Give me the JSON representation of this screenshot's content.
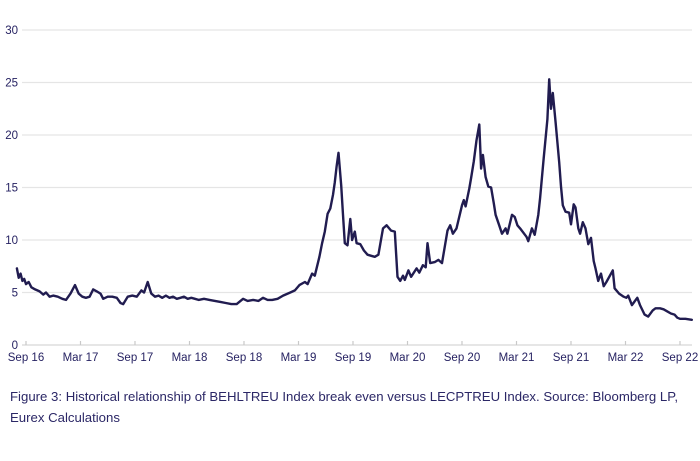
{
  "figure": {
    "caption": "Figure 3: Historical relationship of BEHLTREU Index break even versus LECPTREU Index. Source: Bloomberg LP, Eurex Calculations"
  },
  "style": {
    "line_color": "#211c50",
    "grid_color": "#e5e5e5",
    "axis_baseline_color": "#d8d8d8",
    "tick_color": "#c9c9c9",
    "label_color": "#262262",
    "background": "#ffffff"
  },
  "chart_data": {
    "type": "line",
    "title": "",
    "xlabel": "",
    "ylabel": "",
    "legend_position": "none",
    "grid": "horizontal",
    "ylim": [
      0,
      30
    ],
    "y_ticks": [
      0,
      5,
      10,
      15,
      20,
      25,
      30
    ],
    "x_unit": "months since Sep 2016",
    "x_tick_positions": [
      0,
      6,
      12,
      18,
      24,
      30,
      36,
      42,
      48,
      54,
      60,
      66,
      72
    ],
    "x_tick_labels": [
      "Sep 16",
      "Mar 17",
      "Sep 17",
      "Mar 18",
      "Sep 18",
      "Mar 19",
      "Sep 19",
      "Mar 20",
      "Sep 20",
      "Mar 21",
      "Sep 21",
      "Mar 22",
      "Sep 22"
    ],
    "series": [
      {
        "name": "BEHLTREU Index break even versus LECPTREU Index",
        "color": "#211c50",
        "points": [
          [
            -1.0,
            7.3
          ],
          [
            -0.8,
            6.4
          ],
          [
            -0.6,
            6.8
          ],
          [
            -0.4,
            6.1
          ],
          [
            -0.2,
            6.3
          ],
          [
            0,
            5.8
          ],
          [
            0.3,
            6.0
          ],
          [
            0.6,
            5.5
          ],
          [
            1.0,
            5.3
          ],
          [
            1.5,
            5.1
          ],
          [
            1.9,
            4.8
          ],
          [
            2.2,
            5.0
          ],
          [
            2.6,
            4.6
          ],
          [
            3.0,
            4.7
          ],
          [
            3.5,
            4.6
          ],
          [
            4.0,
            4.4
          ],
          [
            4.4,
            4.3
          ],
          [
            4.9,
            4.9
          ],
          [
            5.4,
            5.7
          ],
          [
            5.8,
            4.9
          ],
          [
            6.2,
            4.6
          ],
          [
            6.6,
            4.5
          ],
          [
            7.0,
            4.6
          ],
          [
            7.4,
            5.3
          ],
          [
            7.8,
            5.1
          ],
          [
            8.2,
            4.9
          ],
          [
            8.5,
            4.4
          ],
          [
            9.0,
            4.6
          ],
          [
            9.5,
            4.6
          ],
          [
            10.0,
            4.5
          ],
          [
            10.4,
            4.0
          ],
          [
            10.7,
            3.9
          ],
          [
            11.2,
            4.6
          ],
          [
            11.7,
            4.7
          ],
          [
            12.2,
            4.6
          ],
          [
            12.7,
            5.2
          ],
          [
            13.0,
            5.0
          ],
          [
            13.4,
            6.0
          ],
          [
            13.8,
            4.9
          ],
          [
            14.2,
            4.6
          ],
          [
            14.6,
            4.7
          ],
          [
            15.0,
            4.5
          ],
          [
            15.4,
            4.7
          ],
          [
            15.8,
            4.5
          ],
          [
            16.2,
            4.6
          ],
          [
            16.6,
            4.4
          ],
          [
            17.0,
            4.5
          ],
          [
            17.4,
            4.6
          ],
          [
            17.8,
            4.4
          ],
          [
            18.2,
            4.5
          ],
          [
            18.6,
            4.4
          ],
          [
            19.0,
            4.3
          ],
          [
            19.6,
            4.4
          ],
          [
            20.2,
            4.3
          ],
          [
            20.8,
            4.2
          ],
          [
            21.4,
            4.1
          ],
          [
            22.0,
            4.0
          ],
          [
            22.6,
            3.9
          ],
          [
            23.2,
            3.9
          ],
          [
            23.9,
            4.4
          ],
          [
            24.4,
            4.2
          ],
          [
            25.0,
            4.3
          ],
          [
            25.6,
            4.2
          ],
          [
            26.1,
            4.5
          ],
          [
            26.6,
            4.3
          ],
          [
            27.1,
            4.3
          ],
          [
            27.7,
            4.4
          ],
          [
            28.3,
            4.7
          ],
          [
            29.1,
            5.0
          ],
          [
            29.6,
            5.2
          ],
          [
            30.1,
            5.7
          ],
          [
            30.7,
            6.0
          ],
          [
            31.0,
            5.8
          ],
          [
            31.5,
            6.8
          ],
          [
            31.8,
            6.6
          ],
          [
            32.3,
            8.4
          ],
          [
            32.6,
            9.7
          ],
          [
            32.9,
            10.8
          ],
          [
            33.2,
            12.5
          ],
          [
            33.5,
            13.0
          ],
          [
            33.8,
            14.3
          ],
          [
            34.0,
            15.5
          ],
          [
            34.2,
            17.0
          ],
          [
            34.4,
            18.3
          ],
          [
            34.7,
            15.2
          ],
          [
            34.9,
            12.4
          ],
          [
            35.1,
            9.7
          ],
          [
            35.4,
            9.5
          ],
          [
            35.7,
            12.0
          ],
          [
            35.9,
            10.0
          ],
          [
            36.2,
            10.8
          ],
          [
            36.4,
            9.7
          ],
          [
            36.8,
            9.6
          ],
          [
            37.2,
            9.0
          ],
          [
            37.6,
            8.6
          ],
          [
            38.0,
            8.5
          ],
          [
            38.4,
            8.4
          ],
          [
            38.8,
            8.6
          ],
          [
            39.3,
            11.1
          ],
          [
            39.7,
            11.4
          ],
          [
            40.2,
            10.9
          ],
          [
            40.6,
            10.8
          ],
          [
            40.9,
            6.5
          ],
          [
            41.2,
            6.1
          ],
          [
            41.5,
            6.6
          ],
          [
            41.7,
            6.2
          ],
          [
            42.1,
            7.1
          ],
          [
            42.4,
            6.5
          ],
          [
            43.0,
            7.3
          ],
          [
            43.3,
            6.9
          ],
          [
            43.7,
            7.6
          ],
          [
            44.0,
            7.4
          ],
          [
            44.2,
            9.7
          ],
          [
            44.5,
            7.8
          ],
          [
            45.0,
            7.9
          ],
          [
            45.4,
            8.1
          ],
          [
            45.8,
            7.8
          ],
          [
            46.4,
            10.9
          ],
          [
            46.7,
            11.4
          ],
          [
            47.0,
            10.6
          ],
          [
            47.4,
            11.1
          ],
          [
            48.0,
            13.3
          ],
          [
            48.2,
            13.8
          ],
          [
            48.4,
            13.2
          ],
          [
            48.8,
            14.9
          ],
          [
            49.0,
            15.9
          ],
          [
            49.3,
            17.5
          ],
          [
            49.6,
            19.5
          ],
          [
            49.9,
            21.0
          ],
          [
            50.1,
            16.8
          ],
          [
            50.3,
            18.1
          ],
          [
            50.6,
            16.0
          ],
          [
            50.9,
            15.1
          ],
          [
            51.2,
            15.0
          ],
          [
            51.5,
            13.5
          ],
          [
            51.7,
            12.4
          ],
          [
            52.1,
            11.4
          ],
          [
            52.4,
            10.6
          ],
          [
            52.8,
            11.1
          ],
          [
            53.0,
            10.6
          ],
          [
            53.5,
            12.4
          ],
          [
            53.8,
            12.2
          ],
          [
            54.1,
            11.4
          ],
          [
            54.4,
            11.1
          ],
          [
            55.1,
            10.3
          ],
          [
            55.3,
            9.9
          ],
          [
            55.7,
            11.1
          ],
          [
            56.0,
            10.5
          ],
          [
            56.4,
            12.4
          ],
          [
            56.6,
            14.0
          ],
          [
            56.8,
            15.9
          ],
          [
            57.0,
            17.8
          ],
          [
            57.2,
            19.7
          ],
          [
            57.4,
            21.5
          ],
          [
            57.6,
            25.3
          ],
          [
            57.8,
            22.5
          ],
          [
            58.0,
            24.0
          ],
          [
            58.3,
            21.2
          ],
          [
            58.5,
            19.3
          ],
          [
            58.7,
            17.4
          ],
          [
            58.9,
            15.1
          ],
          [
            59.1,
            13.3
          ],
          [
            59.4,
            12.7
          ],
          [
            59.8,
            12.6
          ],
          [
            60.0,
            11.5
          ],
          [
            60.3,
            13.4
          ],
          [
            60.5,
            13.1
          ],
          [
            60.8,
            11.1
          ],
          [
            61.0,
            10.6
          ],
          [
            61.3,
            11.7
          ],
          [
            61.6,
            11.1
          ],
          [
            61.9,
            9.6
          ],
          [
            62.2,
            10.2
          ],
          [
            62.5,
            8.0
          ],
          [
            62.7,
            7.3
          ],
          [
            63.0,
            6.1
          ],
          [
            63.3,
            6.8
          ],
          [
            63.6,
            5.6
          ],
          [
            63.9,
            6.0
          ],
          [
            64.6,
            7.1
          ],
          [
            64.8,
            5.4
          ],
          [
            65.3,
            4.9
          ],
          [
            65.8,
            4.6
          ],
          [
            66.1,
            4.5
          ],
          [
            66.3,
            4.7
          ],
          [
            66.7,
            3.8
          ],
          [
            67.3,
            4.5
          ],
          [
            67.6,
            3.8
          ],
          [
            68.1,
            2.9
          ],
          [
            68.5,
            2.7
          ],
          [
            69.0,
            3.3
          ],
          [
            69.3,
            3.5
          ],
          [
            69.8,
            3.5
          ],
          [
            70.2,
            3.4
          ],
          [
            70.6,
            3.2
          ],
          [
            71.0,
            3.0
          ],
          [
            71.4,
            2.9
          ],
          [
            71.7,
            2.6
          ],
          [
            72.0,
            2.5
          ],
          [
            72.6,
            2.5
          ],
          [
            73.3,
            2.4
          ]
        ]
      }
    ]
  }
}
